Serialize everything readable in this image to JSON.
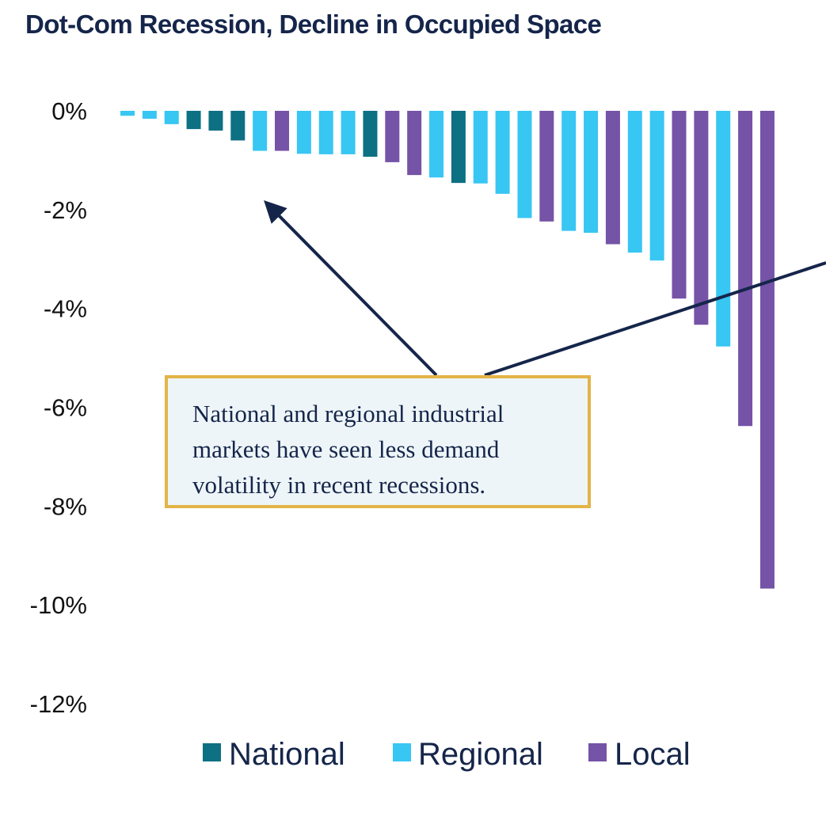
{
  "chart_data": {
    "type": "bar",
    "title": "Dot-Com Recession, Decline in Occupied Space",
    "xlabel": "",
    "ylabel": "",
    "ylim": [
      -12,
      0
    ],
    "yticks": [
      "0%",
      "-2%",
      "-4%",
      "-6%",
      "-8%",
      "-10%",
      "-12%"
    ],
    "ytick_values": [
      0,
      -2,
      -4,
      -6,
      -8,
      -10,
      -12
    ],
    "series": [
      {
        "name": "National",
        "color": "#0d7083"
      },
      {
        "name": "Regional",
        "color": "#38c6f3"
      },
      {
        "name": "Local",
        "color": "#7553a6"
      }
    ],
    "bars": [
      {
        "group": "Regional",
        "value": -0.1
      },
      {
        "group": "Regional",
        "value": -0.16
      },
      {
        "group": "Regional",
        "value": -0.27
      },
      {
        "group": "National",
        "value": -0.37
      },
      {
        "group": "National",
        "value": -0.4
      },
      {
        "group": "National",
        "value": -0.6
      },
      {
        "group": "Regional",
        "value": -0.81
      },
      {
        "group": "Local",
        "value": -0.81
      },
      {
        "group": "Regional",
        "value": -0.87
      },
      {
        "group": "Regional",
        "value": -0.88
      },
      {
        "group": "Regional",
        "value": -0.88
      },
      {
        "group": "National",
        "value": -0.93
      },
      {
        "group": "Local",
        "value": -1.04
      },
      {
        "group": "Local",
        "value": -1.3
      },
      {
        "group": "Regional",
        "value": -1.35
      },
      {
        "group": "National",
        "value": -1.46
      },
      {
        "group": "Regional",
        "value": -1.47
      },
      {
        "group": "Regional",
        "value": -1.68
      },
      {
        "group": "Regional",
        "value": -2.17
      },
      {
        "group": "Local",
        "value": -2.24
      },
      {
        "group": "Regional",
        "value": -2.43
      },
      {
        "group": "Regional",
        "value": -2.47
      },
      {
        "group": "Local",
        "value": -2.7
      },
      {
        "group": "Regional",
        "value": -2.87
      },
      {
        "group": "Regional",
        "value": -3.03
      },
      {
        "group": "Local",
        "value": -3.8
      },
      {
        "group": "Local",
        "value": -4.33
      },
      {
        "group": "Regional",
        "value": -4.77
      },
      {
        "group": "Local",
        "value": -6.38
      },
      {
        "group": "Local",
        "value": -9.67
      }
    ],
    "annotation": "National and regional industrial markets have seen less demand volatility in recent recessions.",
    "legend_position": "bottom-center"
  }
}
